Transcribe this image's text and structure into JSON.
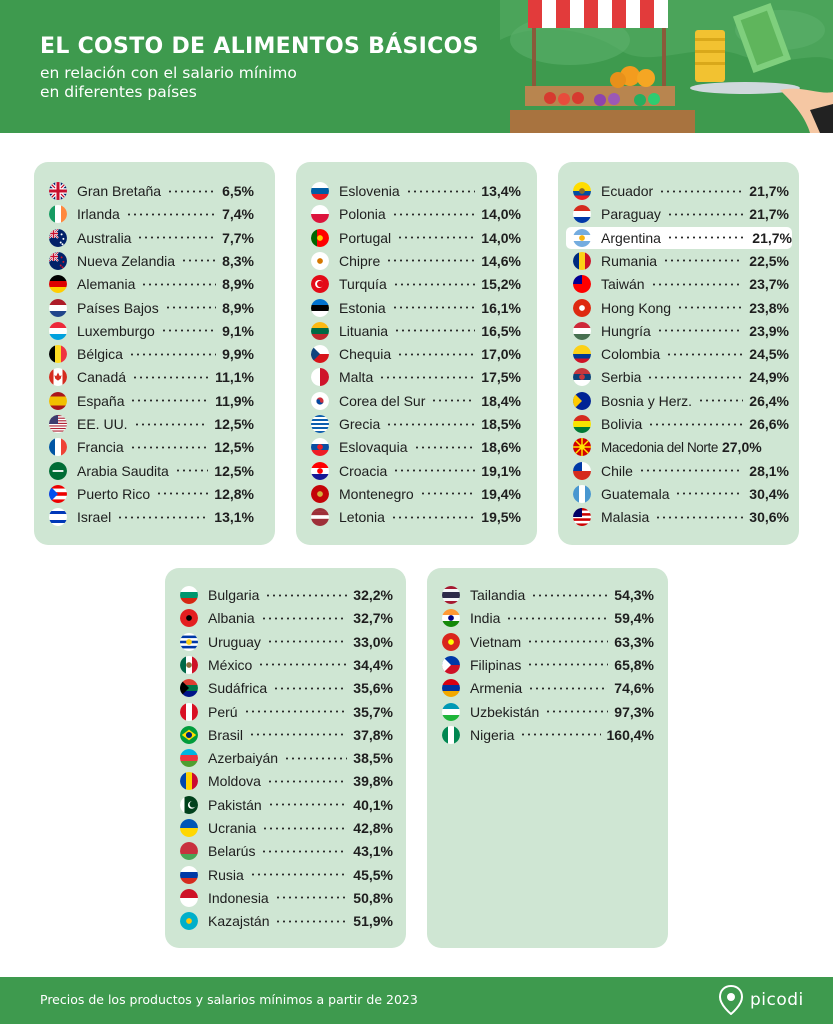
{
  "header": {
    "title": "EL COSTO DE ALIMENTOS BÁSICOS",
    "subtitle_line1": "en relación con el salario mínimo",
    "subtitle_line2": "en diferentes países"
  },
  "footer": {
    "note": "Precios de los productos y salarios mínimos a partir de 2023",
    "brand": "picodi"
  },
  "colors": {
    "header_green": "#3e9a4e",
    "card_green": "#cfe6d3",
    "highlight": "#ffffff"
  },
  "chart_data": {
    "type": "table",
    "highlighted_country": "Argentina",
    "columns": [
      {
        "rows": [
          {
            "country": "Gran Bretaña",
            "value": "6,5%",
            "flag": "gb-flag-icon"
          },
          {
            "country": "Irlanda",
            "value": "7,4%",
            "flag": "ie-flag-icon"
          },
          {
            "country": "Australia",
            "value": "7,7%",
            "flag": "au-flag-icon"
          },
          {
            "country": "Nueva Zelandia",
            "value": "8,3%",
            "flag": "nz-flag-icon"
          },
          {
            "country": "Alemania",
            "value": "8,9%",
            "flag": "de-flag-icon"
          },
          {
            "country": "Países Bajos",
            "value": "8,9%",
            "flag": "nl-flag-icon"
          },
          {
            "country": "Luxemburgo",
            "value": "9,1%",
            "flag": "lu-flag-icon"
          },
          {
            "country": "Bélgica",
            "value": "9,9%",
            "flag": "be-flag-icon"
          },
          {
            "country": "Canadá",
            "value": "11,1%",
            "flag": "ca-flag-icon"
          },
          {
            "country": "España",
            "value": "11,9%",
            "flag": "es-flag-icon"
          },
          {
            "country": "EE. UU.",
            "value": "12,5%",
            "flag": "us-flag-icon"
          },
          {
            "country": "Francia",
            "value": "12,5%",
            "flag": "fr-flag-icon"
          },
          {
            "country": "Arabia Saudita",
            "value": "12,5%",
            "flag": "sa-flag-icon"
          },
          {
            "country": "Puerto Rico",
            "value": "12,8%",
            "flag": "pr-flag-icon"
          },
          {
            "country": "Israel",
            "value": "13,1%",
            "flag": "il-flag-icon"
          }
        ]
      },
      {
        "rows": [
          {
            "country": "Eslovenia",
            "value": "13,4%",
            "flag": "si-flag-icon"
          },
          {
            "country": "Polonia",
            "value": "14,0%",
            "flag": "pl-flag-icon"
          },
          {
            "country": "Portugal",
            "value": "14,0%",
            "flag": "pt-flag-icon"
          },
          {
            "country": "Chipre",
            "value": "14,6%",
            "flag": "cy-flag-icon"
          },
          {
            "country": "Turquía",
            "value": "15,2%",
            "flag": "tr-flag-icon"
          },
          {
            "country": "Estonia",
            "value": "16,1%",
            "flag": "ee-flag-icon"
          },
          {
            "country": "Lituania",
            "value": "16,5%",
            "flag": "lt-flag-icon"
          },
          {
            "country": "Chequia",
            "value": "17,0%",
            "flag": "cz-flag-icon"
          },
          {
            "country": "Malta",
            "value": "17,5%",
            "flag": "mt-flag-icon"
          },
          {
            "country": "Corea del Sur",
            "value": "18,4%",
            "flag": "kr-flag-icon"
          },
          {
            "country": "Grecia",
            "value": "18,5%",
            "flag": "gr-flag-icon"
          },
          {
            "country": "Eslovaquia",
            "value": "18,6%",
            "flag": "sk-flag-icon"
          },
          {
            "country": "Croacia",
            "value": "19,1%",
            "flag": "hr-flag-icon"
          },
          {
            "country": "Montenegro",
            "value": "19,4%",
            "flag": "me-flag-icon"
          },
          {
            "country": "Letonia",
            "value": "19,5%",
            "flag": "lv-flag-icon"
          }
        ]
      },
      {
        "rows": [
          {
            "country": "Ecuador",
            "value": "21,7%",
            "flag": "ec-flag-icon"
          },
          {
            "country": "Paraguay",
            "value": "21,7%",
            "flag": "py-flag-icon"
          },
          {
            "country": "Argentina",
            "value": "21,7%",
            "flag": "ar-flag-icon"
          },
          {
            "country": "Rumania",
            "value": "22,5%",
            "flag": "ro-flag-icon"
          },
          {
            "country": "Taiwán",
            "value": "23,7%",
            "flag": "tw-flag-icon"
          },
          {
            "country": "Hong Kong",
            "value": "23,8%",
            "flag": "hk-flag-icon"
          },
          {
            "country": "Hungría",
            "value": "23,9%",
            "flag": "hu-flag-icon"
          },
          {
            "country": "Colombia",
            "value": "24,5%",
            "flag": "co-flag-icon"
          },
          {
            "country": "Serbia",
            "value": "24,9%",
            "flag": "rs-flag-icon"
          },
          {
            "country": "Bosnia y Herz.",
            "value": "26,4%",
            "flag": "ba-flag-icon"
          },
          {
            "country": "Bolivia",
            "value": "26,6%",
            "flag": "bo-flag-icon"
          },
          {
            "country": "Macedonia del Norte",
            "value": "27,0%",
            "flag": "mk-flag-icon"
          },
          {
            "country": "Chile",
            "value": "28,1%",
            "flag": "cl-flag-icon"
          },
          {
            "country": "Guatemala",
            "value": "30,4%",
            "flag": "gt-flag-icon"
          },
          {
            "country": "Malasia",
            "value": "30,6%",
            "flag": "my-flag-icon"
          }
        ]
      },
      {
        "rows": [
          {
            "country": "Bulgaria",
            "value": "32,2%",
            "flag": "bg-flag-icon"
          },
          {
            "country": "Albania",
            "value": "32,7%",
            "flag": "al-flag-icon"
          },
          {
            "country": "Uruguay",
            "value": "33,0%",
            "flag": "uy-flag-icon"
          },
          {
            "country": "México",
            "value": "34,4%",
            "flag": "mx-flag-icon"
          },
          {
            "country": "Sudáfrica",
            "value": "35,6%",
            "flag": "za-flag-icon"
          },
          {
            "country": "Perú",
            "value": "35,7%",
            "flag": "pe-flag-icon"
          },
          {
            "country": "Brasil",
            "value": "37,8%",
            "flag": "br-flag-icon"
          },
          {
            "country": "Azerbaiyán",
            "value": "38,5%",
            "flag": "az-flag-icon"
          },
          {
            "country": "Moldova",
            "value": "39,8%",
            "flag": "md-flag-icon"
          },
          {
            "country": "Pakistán",
            "value": "40,1%",
            "flag": "pk-flag-icon"
          },
          {
            "country": "Ucrania",
            "value": "42,8%",
            "flag": "ua-flag-icon"
          },
          {
            "country": "Belarús",
            "value": "43,1%",
            "flag": "by-flag-icon"
          },
          {
            "country": "Rusia",
            "value": "45,5%",
            "flag": "ru-flag-icon"
          },
          {
            "country": "Indonesia",
            "value": "50,8%",
            "flag": "id-flag-icon"
          },
          {
            "country": "Kazajstán",
            "value": "51,9%",
            "flag": "kz-flag-icon"
          }
        ]
      },
      {
        "rows": [
          {
            "country": "Tailandia",
            "value": "54,3%",
            "flag": "th-flag-icon"
          },
          {
            "country": "India",
            "value": "59,4%",
            "flag": "in-flag-icon"
          },
          {
            "country": "Vietnam",
            "value": "63,3%",
            "flag": "vn-flag-icon"
          },
          {
            "country": "Filipinas",
            "value": "65,8%",
            "flag": "ph-flag-icon"
          },
          {
            "country": "Armenia",
            "value": "74,6%",
            "flag": "am-flag-icon"
          },
          {
            "country": "Uzbekistán",
            "value": "97,3%",
            "flag": "uz-flag-icon"
          },
          {
            "country": "Nigeria",
            "value": "160,4%",
            "flag": "ng-flag-icon"
          }
        ]
      }
    ]
  }
}
